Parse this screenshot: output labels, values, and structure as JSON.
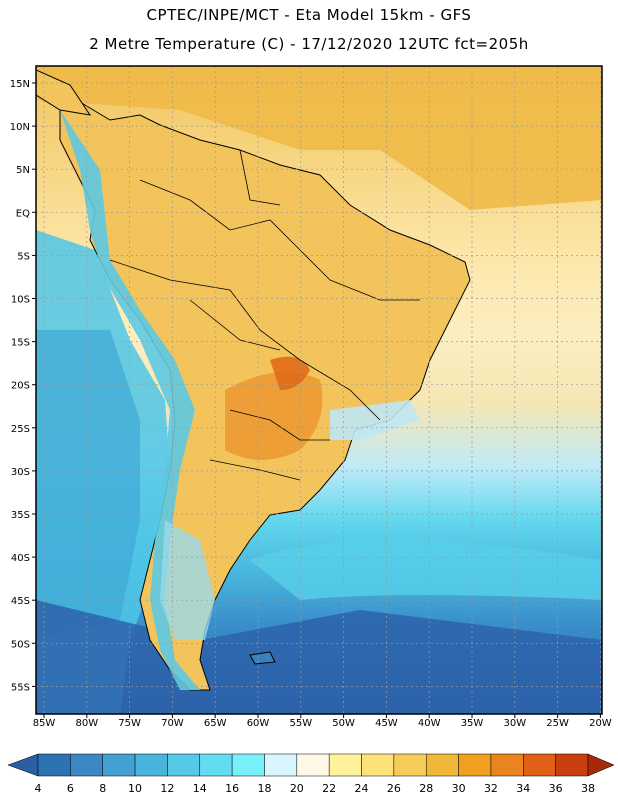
{
  "title_line1": "CPTEC/INPE/MCT -  Eta Model 15km - GFS",
  "title_line2": "2 Metre Temperature (C) - 17/12/2020 12UTC fct=205h",
  "map": {
    "lon_labels": [
      "85W",
      "80W",
      "75W",
      "70W",
      "65W",
      "60W",
      "55W",
      "50W",
      "45W",
      "40W",
      "35W",
      "30W",
      "25W",
      "20W"
    ],
    "lat_labels": [
      "15N",
      "10N",
      "5N",
      "EQ",
      "5S",
      "10S",
      "15S",
      "20S",
      "25S",
      "30S",
      "35S",
      "40S",
      "45S",
      "50S",
      "55S"
    ],
    "ocean_color": "#2f6fb6",
    "land_color": "#f2c15a",
    "grid": "dotted"
  },
  "colorbar": {
    "labels": [
      "4",
      "6",
      "8",
      "10",
      "12",
      "14",
      "16",
      "18",
      "20",
      "22",
      "24",
      "26",
      "28",
      "30",
      "32",
      "34",
      "36",
      "38"
    ],
    "colors": [
      "#2b5fa4",
      "#2d73b4",
      "#3b88c4",
      "#42a0d2",
      "#48b4dc",
      "#55c9e6",
      "#62dcf0",
      "#78f0fa",
      "#d8f6ff",
      "#fff8e6",
      "#fff29a",
      "#fde27a",
      "#f6cd58",
      "#efb838",
      "#f0a020",
      "#ea8420",
      "#e06018",
      "#c84010",
      "#a8280c"
    ]
  }
}
